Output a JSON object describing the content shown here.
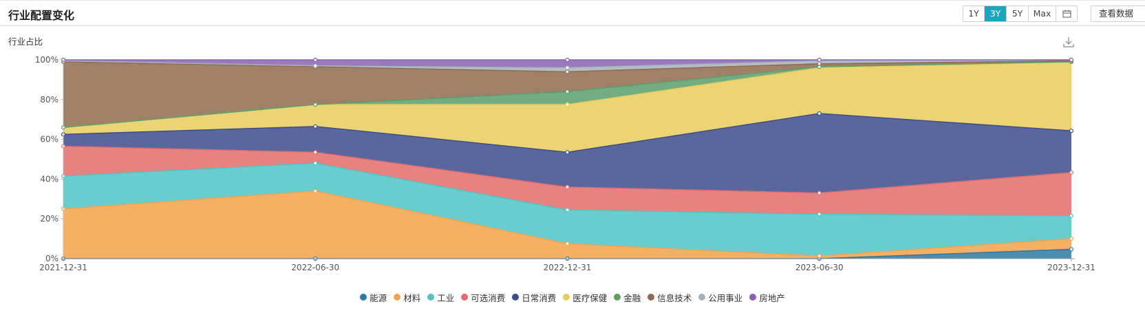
{
  "header": {
    "title": "行业配置变化",
    "range_buttons": [
      "1Y",
      "3Y",
      "5Y",
      "Max"
    ],
    "active_range": "3Y",
    "view_data_label": "查看数据"
  },
  "chart_data": {
    "type": "area",
    "stacked": true,
    "ylabel": "行业占比",
    "ylim": [
      0,
      100
    ],
    "y_ticks": [
      "0%",
      "20%",
      "40%",
      "60%",
      "80%",
      "100%"
    ],
    "categories": [
      "2021-12-31",
      "2022-06-30",
      "2022-12-31",
      "2023-06-30",
      "2023-12-31"
    ],
    "grid": false,
    "legend_position": "bottom-center",
    "series": [
      {
        "name": "能源",
        "color": "#2b7aa0",
        "values": [
          0,
          0,
          0,
          0,
          4.7
        ]
      },
      {
        "name": "材料",
        "color": "#f5a24b",
        "values": [
          25,
          34,
          7.5,
          1.3,
          5.3
        ]
      },
      {
        "name": "工业",
        "color": "#4fc4c4",
        "values": [
          16.5,
          14,
          17,
          21,
          11.5
        ]
      },
      {
        "name": "可选消费",
        "color": "#e36c6c",
        "values": [
          15,
          5.5,
          11.5,
          10.7,
          21.8
        ]
      },
      {
        "name": "日常消费",
        "color": "#3c4c8c",
        "values": [
          6,
          13,
          17.5,
          40,
          21
        ]
      },
      {
        "name": "医疗保健",
        "color": "#e6cc5a",
        "values": [
          3.5,
          11,
          24,
          23,
          34.5
        ]
      },
      {
        "name": "金融",
        "color": "#5a9e6a",
        "values": [
          0,
          0,
          6.5,
          0.5,
          0.2
        ]
      },
      {
        "name": "信息技术",
        "color": "#8e6b50",
        "values": [
          33,
          19,
          10,
          1.5,
          0.5
        ]
      },
      {
        "name": "公用事业",
        "color": "#a7b0ba",
        "values": [
          0.5,
          0.5,
          2,
          1.5,
          0.5
        ]
      },
      {
        "name": "房地产",
        "color": "#8a62b0",
        "values": [
          0.5,
          3,
          4,
          0.5,
          0
        ]
      }
    ]
  }
}
